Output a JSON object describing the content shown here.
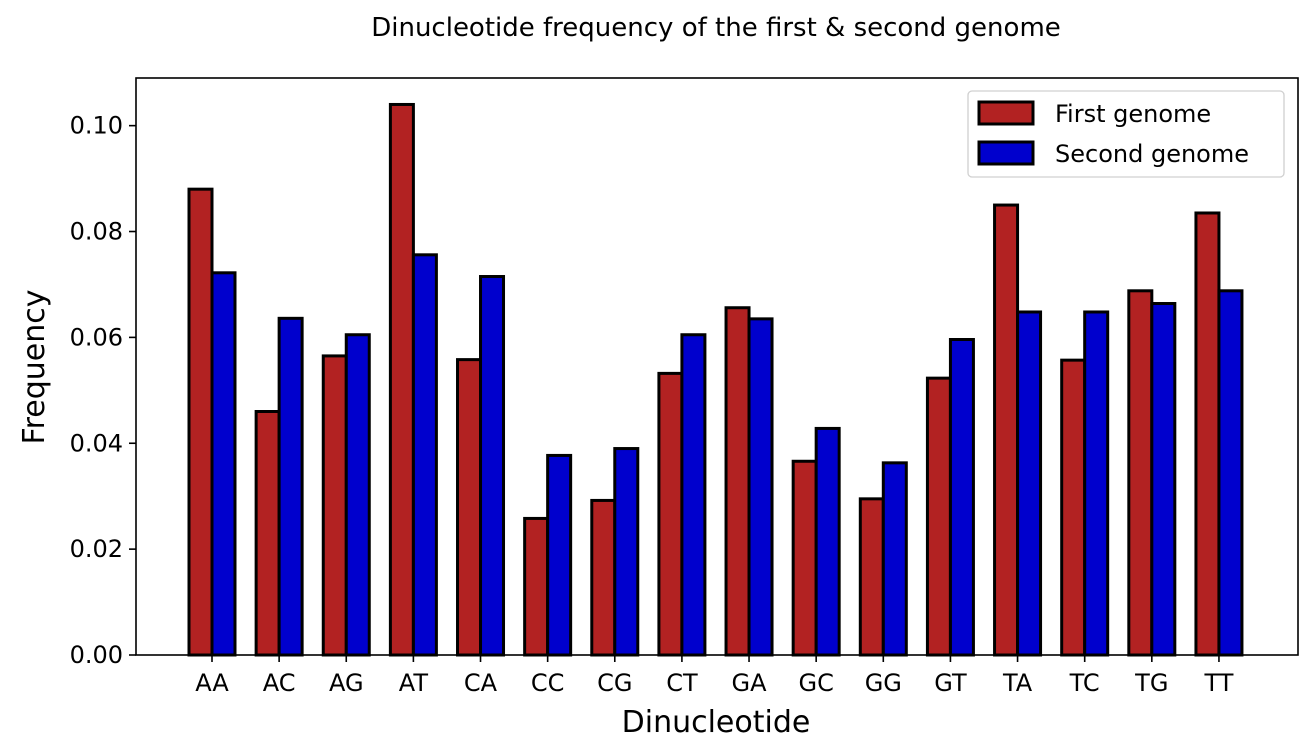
{
  "chart_data": {
    "type": "bar",
    "title": "Dinucleotide frequency of the first & second genome",
    "xlabel": "Dinucleotide",
    "ylabel": "Frequency",
    "categories": [
      "AA",
      "AC",
      "AG",
      "AT",
      "CA",
      "CC",
      "CG",
      "CT",
      "GA",
      "GC",
      "GG",
      "GT",
      "TA",
      "TC",
      "TG",
      "TT"
    ],
    "series": [
      {
        "name": "First genome",
        "color": "#b22222",
        "values": [
          0.088,
          0.046,
          0.0565,
          0.104,
          0.0558,
          0.0258,
          0.0292,
          0.0532,
          0.0656,
          0.0366,
          0.0295,
          0.0523,
          0.085,
          0.0557,
          0.0688,
          0.0835
        ]
      },
      {
        "name": "Second genome",
        "color": "#0000cd",
        "values": [
          0.0722,
          0.0636,
          0.0605,
          0.0756,
          0.0715,
          0.0377,
          0.039,
          0.0605,
          0.0635,
          0.0428,
          0.0363,
          0.0596,
          0.0648,
          0.0648,
          0.0664,
          0.0688
        ]
      }
    ],
    "yticks": [
      "0.00",
      "0.02",
      "0.04",
      "0.06",
      "0.08",
      "0.10"
    ],
    "ylim": [
      0,
      0.109
    ],
    "legend_position": "top-right",
    "grid": false
  }
}
